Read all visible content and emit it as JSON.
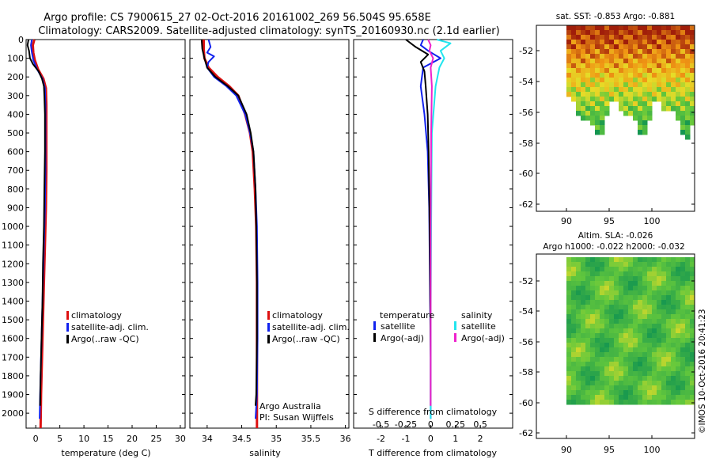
{
  "title_line1": "Argo profile: CS 7900615_27 02-Oct-2016 20161002_269 56.504S 95.658E",
  "title_line2": "Climatology: CARS2009. Satellite-adjusted climatology: synTS_20160930.nc (2.1d earlier)",
  "credit": "©IMOS 10-Oct-2016 20:41:23",
  "colors": {
    "climatology": "#dd1111",
    "satellite": "#1122ee",
    "argo": "#000000",
    "sat_salinity": "#22e5ee",
    "argo_salinity": "#ee22cc"
  },
  "depth_ticks": [
    "0",
    "100",
    "200",
    "300",
    "400",
    "500",
    "600",
    "700",
    "800",
    "900",
    "1000",
    "1100",
    "1200",
    "1300",
    "1400",
    "1500",
    "1600",
    "1700",
    "1800",
    "1900",
    "2000"
  ],
  "chart_data": [
    {
      "type": "line",
      "xlabel": "temperature (deg C)",
      "xlim": [
        -2,
        31
      ],
      "ylim": [
        2080,
        0
      ],
      "xticks": [
        "0",
        "5",
        "10",
        "15",
        "20",
        "25",
        "30"
      ],
      "legend": [
        "climatology",
        "satellite-adj. clim.",
        "Argo(..raw -QC)"
      ],
      "series": [
        {
          "name": "climatology",
          "points": [
            [
              -0.3,
              0
            ],
            [
              -0.6,
              30
            ],
            [
              -0.5,
              70
            ],
            [
              -0.2,
              110
            ],
            [
              0.5,
              160
            ],
            [
              1.6,
              210
            ],
            [
              2.1,
              260
            ],
            [
              2.2,
              350
            ],
            [
              2.2,
              500
            ],
            [
              2.2,
              700
            ],
            [
              2.1,
              900
            ],
            [
              1.9,
              1100
            ],
            [
              1.7,
              1300
            ],
            [
              1.5,
              1500
            ],
            [
              1.3,
              1700
            ],
            [
              1.1,
              1900
            ],
            [
              1.0,
              2080
            ]
          ]
        },
        {
          "name": "satellite-adj. clim.",
          "points": [
            [
              -0.8,
              0
            ],
            [
              -1.0,
              30
            ],
            [
              -0.8,
              70
            ],
            [
              -0.5,
              110
            ],
            [
              0.3,
              160
            ],
            [
              1.4,
              210
            ],
            [
              1.9,
              260
            ],
            [
              2.0,
              350
            ],
            [
              2.0,
              500
            ],
            [
              2.0,
              700
            ],
            [
              1.9,
              900
            ],
            [
              1.7,
              1100
            ],
            [
              1.5,
              1300
            ],
            [
              1.3,
              1500
            ],
            [
              1.1,
              1700
            ],
            [
              0.9,
              1900
            ],
            [
              0.8,
              2030
            ]
          ]
        },
        {
          "name": "Argo(..raw -QC)",
          "points": [
            [
              -1.5,
              0
            ],
            [
              -1.7,
              30
            ],
            [
              -1.4,
              60
            ],
            [
              -1.2,
              100
            ],
            [
              -0.6,
              130
            ],
            [
              0.6,
              170
            ],
            [
              1.3,
              210
            ],
            [
              1.7,
              250
            ],
            [
              1.8,
              300
            ],
            [
              1.9,
              400
            ],
            [
              1.9,
              600
            ],
            [
              1.8,
              800
            ],
            [
              1.7,
              1000
            ],
            [
              1.5,
              1200
            ],
            [
              1.4,
              1400
            ],
            [
              1.2,
              1600
            ],
            [
              1.0,
              1800
            ],
            [
              0.9,
              1960
            ]
          ]
        }
      ]
    },
    {
      "type": "line",
      "xlabel": "salinity",
      "xlim": [
        33.75,
        36.05
      ],
      "ylim": [
        2080,
        0
      ],
      "xticks": [
        "34",
        "34.5",
        "35",
        "35.5",
        "36"
      ],
      "legend": [
        "climatology",
        "satellite-adj. clim.",
        "Argo(..raw -QC)"
      ],
      "annotation": [
        "Argo Australia",
        "PI: Susan Wijffels"
      ],
      "series": [
        {
          "name": "climatology",
          "points": [
            [
              33.95,
              0
            ],
            [
              33.95,
              50
            ],
            [
              33.96,
              100
            ],
            [
              34.02,
              150
            ],
            [
              34.15,
              200
            ],
            [
              34.32,
              250
            ],
            [
              34.45,
              300
            ],
            [
              34.55,
              400
            ],
            [
              34.62,
              500
            ],
            [
              34.66,
              600
            ],
            [
              34.69,
              800
            ],
            [
              34.71,
              1000
            ],
            [
              34.72,
              1300
            ],
            [
              34.72,
              1600
            ],
            [
              34.72,
              1900
            ],
            [
              34.72,
              2080
            ]
          ]
        },
        {
          "name": "satellite-adj. clim.",
          "points": [
            [
              34.02,
              0
            ],
            [
              34.05,
              40
            ],
            [
              34.0,
              70
            ],
            [
              34.1,
              90
            ],
            [
              34.02,
              120
            ],
            [
              34.0,
              150
            ],
            [
              34.1,
              200
            ],
            [
              34.28,
              250
            ],
            [
              34.42,
              300
            ],
            [
              34.55,
              400
            ],
            [
              34.62,
              500
            ],
            [
              34.67,
              600
            ],
            [
              34.7,
              800
            ],
            [
              34.72,
              1000
            ],
            [
              34.73,
              1300
            ],
            [
              34.73,
              1600
            ],
            [
              34.72,
              1900
            ],
            [
              34.7,
              2030
            ]
          ]
        },
        {
          "name": "Argo(..raw -QC)",
          "points": [
            [
              33.92,
              0
            ],
            [
              33.93,
              50
            ],
            [
              33.96,
              100
            ],
            [
              34.0,
              150
            ],
            [
              34.12,
              200
            ],
            [
              34.3,
              250
            ],
            [
              34.45,
              300
            ],
            [
              34.57,
              400
            ],
            [
              34.63,
              500
            ],
            [
              34.67,
              600
            ],
            [
              34.7,
              800
            ],
            [
              34.71,
              1000
            ],
            [
              34.72,
              1300
            ],
            [
              34.72,
              1600
            ],
            [
              34.71,
              1900
            ],
            [
              34.7,
              1960
            ]
          ]
        }
      ]
    },
    {
      "type": "line",
      "xlabel": "T difference from climatology",
      "xlabel2": "S difference from climatology",
      "xlim": [
        -3.1,
        3.3
      ],
      "ylim": [
        2080,
        0
      ],
      "xticks": [
        "-2",
        "-1",
        "0",
        "1",
        "2"
      ],
      "xticks_s": [
        "-0.5",
        "-0.25",
        "0",
        "0.25",
        "0.5"
      ],
      "legend_headers": [
        "temperature",
        "salinity"
      ],
      "legend": [
        "satellite",
        "Argo(-adj)",
        "satellite",
        "Argo(-adj)"
      ],
      "series": [
        {
          "name": "satellite",
          "points": [
            [
              -0.3,
              0
            ],
            [
              -0.4,
              30
            ],
            [
              -0.1,
              60
            ],
            [
              0.4,
              100
            ],
            [
              -0.3,
              150
            ],
            [
              -0.4,
              250
            ],
            [
              -0.25,
              400
            ],
            [
              -0.12,
              600
            ],
            [
              -0.06,
              900
            ],
            [
              -0.03,
              1300
            ],
            [
              0,
              1700
            ],
            [
              0,
              2030
            ]
          ]
        },
        {
          "name": "Argo(-adj)",
          "points": [
            [
              -1.0,
              0
            ],
            [
              -0.6,
              40
            ],
            [
              -0.1,
              80
            ],
            [
              -0.4,
              120
            ],
            [
              -0.25,
              170
            ],
            [
              -0.2,
              250
            ],
            [
              -0.12,
              400
            ],
            [
              -0.08,
              600
            ],
            [
              -0.05,
              900
            ],
            [
              -0.02,
              1300
            ],
            [
              0,
              1700
            ],
            [
              0,
              1960
            ]
          ]
        },
        {
          "name": "satellite",
          "points": [
            [
              0.25,
              0
            ],
            [
              0.8,
              20
            ],
            [
              0.4,
              60
            ],
            [
              0.55,
              100
            ],
            [
              0.35,
              150
            ],
            [
              0.2,
              250
            ],
            [
              0.05,
              500
            ],
            [
              0.02,
              1000
            ],
            [
              0,
              1500
            ],
            [
              0,
              2030
            ]
          ]
        },
        {
          "name": "Argo(-adj)",
          "points": [
            [
              -0.1,
              0
            ],
            [
              0,
              30
            ],
            [
              -0.05,
              60
            ],
            [
              0.1,
              100
            ],
            [
              0.0,
              150
            ],
            [
              0.05,
              250
            ],
            [
              0.02,
              500
            ],
            [
              0,
              1000
            ],
            [
              0,
              1500
            ],
            [
              0,
              1960
            ]
          ]
        }
      ]
    },
    {
      "type": "heatmap",
      "title": "sat. SST: -0.853 Argo: -0.881",
      "xticks": [
        "90",
        "95",
        "100"
      ],
      "yticks": [
        "-52",
        "-54",
        "-56",
        "-58",
        "-60",
        "-62"
      ]
    },
    {
      "type": "heatmap",
      "title_line1": "Altim. SLA: -0.026",
      "title_line2": "Argo h1000: -0.022 h2000: -0.032",
      "xticks": [
        "90",
        "95",
        "100"
      ],
      "yticks": [
        "-52",
        "-54",
        "-56",
        "-58",
        "-60",
        "-62"
      ]
    }
  ]
}
